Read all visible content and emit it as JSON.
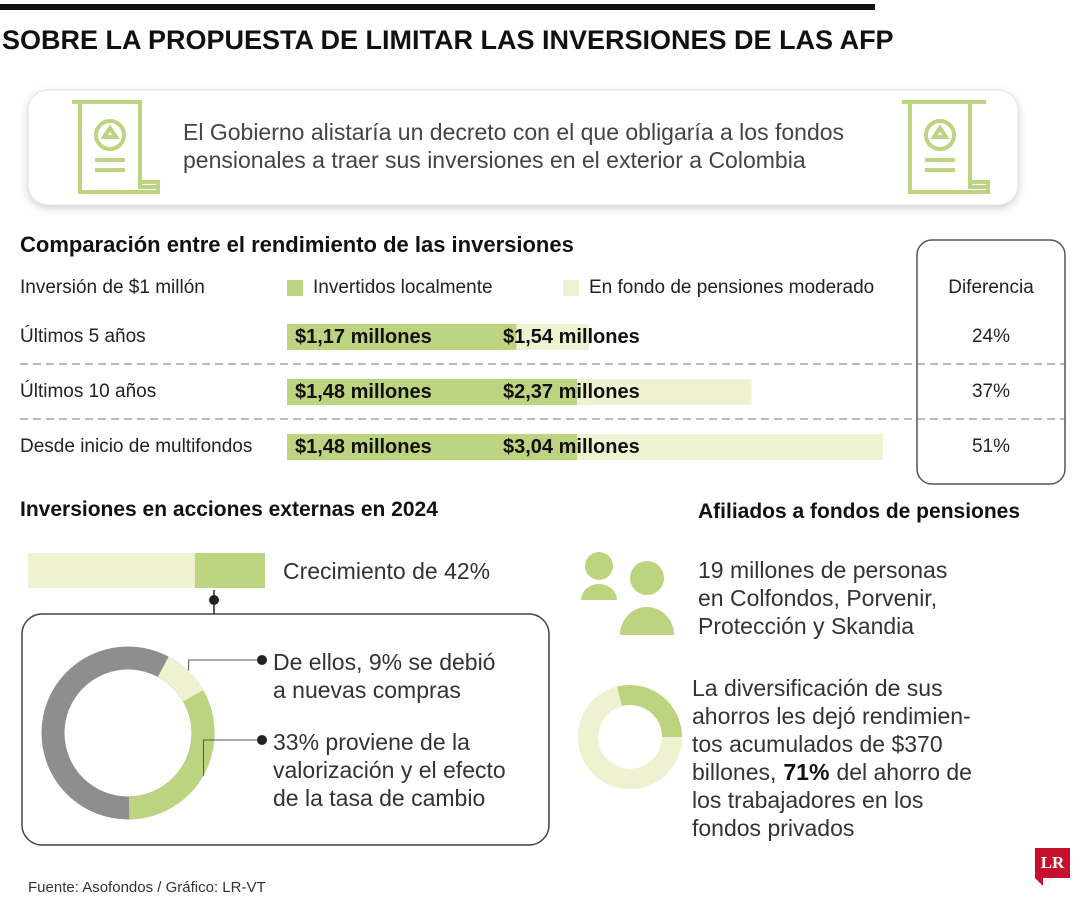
{
  "header": {
    "title": "SOBRE LA PROPUESTA DE LIMITAR LAS INVERSIONES DE LAS AFP",
    "intro": [
      "El Gobierno alistaría un decreto con el que obligaría a los fondos",
      "pensionales a traer sus inversiones en el exterior a Colombia"
    ]
  },
  "comparison": {
    "title": "Comparación entre el rendimiento de las inversiones",
    "row_header": "Inversión de $1 millón",
    "legend": [
      {
        "name": "Invertidos localmente",
        "color": "#bcd47f"
      },
      {
        "name": "En fondo de pensiones moderado",
        "color": "#eef2d0"
      }
    ],
    "difference_header": "Diferencia",
    "rows": [
      {
        "label": "Últimos 5 años",
        "local": 1.17,
        "local_label": "$1,17 millones",
        "fund": 1.54,
        "fund_label": "$1,54 millones",
        "difference": "24%"
      },
      {
        "label": "Últimos 10 años",
        "local": 1.48,
        "local_label": "$1,48 millones",
        "fund": 2.37,
        "fund_label": "$2,37 millones",
        "difference": "37%"
      },
      {
        "label": "Desde inicio de multifondos",
        "local": 1.48,
        "local_label": "$1,48 millones",
        "fund": 3.04,
        "fund_label": "$3,04 millones",
        "difference": "51%"
      }
    ]
  },
  "external_stocks": {
    "title": "Inversiones en acciones externas en 2024",
    "growth": 42,
    "growth_text": "Crecimiento de 42%",
    "segments": [
      {
        "value": 9,
        "color": "#eef2d0",
        "lines": [
          "De ellos, 9% se debió",
          "a nuevas compras"
        ]
      },
      {
        "value": 33,
        "color": "#bcd47f",
        "lines": [
          "33% proviene de la",
          "valorización y el efecto",
          "de la tasa de cambio"
        ]
      }
    ]
  },
  "affiliates": {
    "title": "Afiliados a fondos de pensiones",
    "people_lines": [
      "19 millones de personas",
      "en Colfondos, Porvenir,",
      "Protección y Skandia"
    ],
    "share": 71,
    "diversification": {
      "before": [
        "La diversificación de sus",
        "ahorros les dejó rendimien-",
        "tos acumulados de $370",
        "billones,"
      ],
      "highlight": "71%",
      "after": [
        "del ahorro de",
        "los trabajadores en los",
        "fondos privados"
      ]
    }
  },
  "footer": {
    "source": "Fuente: Asofondos / Gráfico: LR-VT",
    "logo": "LR"
  }
}
